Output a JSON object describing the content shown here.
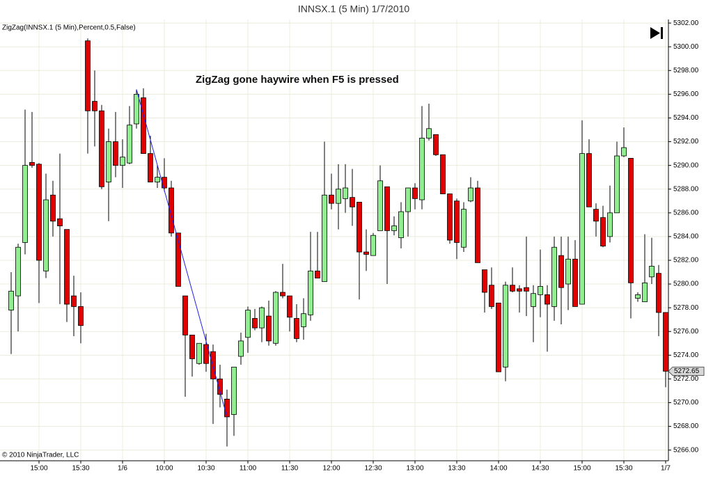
{
  "chart_data": {
    "type": "candlestick",
    "title": "INNSX.1 (5 Min)  1/7/2010",
    "subtitle": "ZigZag(INNSX.1 (5 Min),Percent,0.5,False)",
    "annotation": "ZigZag gone haywire when F5 is pressed",
    "copyright": "© 2010 NinjaTrader, LLC",
    "categories": [
      null,
      null,
      null,
      null,
      "15:00",
      null,
      null,
      null,
      null,
      null,
      "15:30",
      null,
      null,
      null,
      null,
      null,
      "1/6",
      null,
      null,
      null,
      null,
      null,
      "10:00",
      null,
      null,
      null,
      null,
      null,
      "10:30",
      null,
      null,
      null,
      null,
      null,
      "11:00",
      null,
      null,
      null,
      null,
      null,
      "11:30",
      null,
      null,
      null,
      null,
      null,
      "12:00",
      null,
      null,
      null,
      null,
      null,
      "12:30",
      null,
      null,
      null,
      null,
      null,
      "13:00",
      null,
      null,
      null,
      null,
      null,
      "13:30",
      null,
      null,
      null,
      null,
      null,
      "14:00",
      null,
      null,
      null,
      null,
      null,
      "14:30",
      null,
      null,
      null,
      null,
      null,
      "15:00",
      null,
      null,
      null,
      null,
      null,
      "15:30",
      null,
      null,
      null,
      null,
      null,
      "1/7"
    ],
    "open": [
      5277.8,
      5279,
      5283.5,
      5290.25,
      5290.1,
      5281.1,
      5287.5,
      5285.5,
      5284.6,
      5279,
      5278.1,
      5300.5,
      5295.4,
      5294.6,
      5288.6,
      5292,
      5290,
      5290.2,
      5293.5,
      5295.7,
      5291,
      5288.6,
      5289,
      5288.1,
      5284.3,
      5279,
      5275.7,
      5273.3,
      5274.9,
      5274.3,
      5272,
      5270.3,
      5269,
      5273.9,
      5275.5,
      5277.1,
      5276.3,
      5277.3,
      5275,
      5279.3,
      5279,
      5277.1,
      5276.4,
      5277.4,
      5281.1,
      5280.2,
      5287.5,
      5286.8,
      5287.2,
      5287.3,
      5286.9,
      5282.7,
      5282.4,
      5284.5,
      5288.2,
      5284.5,
      5283.9,
      5286.1,
      5288.1,
      5287.1,
      5292.3,
      5292.6,
      5290.9,
      5287.6,
      5287,
      5283.1,
      5287,
      5288.1,
      5281.2,
      5279.9,
      5278.4,
      5273,
      5279.9,
      5279.6,
      5279.7,
      5278.1,
      5279.1,
      5279.1,
      5278.1,
      5282.4,
      5280,
      5282.1,
      5278.3,
      5291,
      5286.3,
      5285.6,
      5284,
      5286,
      5290.8,
      5290.6,
      5278.8,
      5278.5,
      5280.6,
      5280.9,
      5277.6
    ],
    "high": [
      5281,
      5283.4,
      5294.7,
      5294.5,
      5290.2,
      5289.3,
      5288.7,
      5291,
      5284.6,
      5280.7,
      5279.3,
      5300.7,
      5298,
      5295.1,
      5293.1,
      5294.5,
      5292.2,
      5295,
      5296.4,
      5296.5,
      5292.5,
      5290,
      5290.6,
      5288.7,
      5284.3,
      5279,
      5275.7,
      5275,
      5275.8,
      5274.9,
      5273.2,
      5271.1,
      5273,
      5275.9,
      5278.1,
      5277.9,
      5278.1,
      5278.6,
      5279.4,
      5281.7,
      5279,
      5278.3,
      5278.8,
      5284.4,
      5284.4,
      5292,
      5289.3,
      5290.1,
      5290.1,
      5289.7,
      5286.9,
      5284.6,
      5284.3,
      5290,
      5288.2,
      5285.7,
      5286.9,
      5288.1,
      5288.5,
      5295,
      5295.2,
      5292.6,
      5290.9,
      5287.6,
      5287.2,
      5286.9,
      5289,
      5288.7,
      5281.2,
      5281.4,
      5278.4,
      5280.2,
      5281.4,
      5279.9,
      5284,
      5279.9,
      5282.9,
      5279.9,
      5284,
      5284,
      5284,
      5283.7,
      5293.8,
      5292.2,
      5286.8,
      5286.6,
      5288.3,
      5292,
      5293.2,
      5290.6,
      5279.3,
      5284.2,
      5283.9,
      5281.6,
      5277.6
    ],
    "low": [
      5274.1,
      5276,
      5282.5,
      5289.8,
      5278.4,
      5280.5,
      5284,
      5278.3,
      5276.8,
      5275.6,
      5275,
      5291,
      5291.6,
      5288,
      5285.3,
      5289,
      5288.1,
      5290.1,
      5293.1,
      5291,
      5288.6,
      5288.1,
      5287.8,
      5284,
      5279.8,
      5270.5,
      5272.2,
      5273.2,
      5272.6,
      5268.2,
      5269.6,
      5266.3,
      5267.2,
      5273.2,
      5274.2,
      5276.1,
      5275.1,
      5274.8,
      5274.8,
      5278.8,
      5276,
      5275.1,
      5275.3,
      5276.9,
      5280.5,
      5280.2,
      5286.3,
      5284.6,
      5286,
      5284.9,
      5278.7,
      5281.1,
      5282.4,
      5284.5,
      5280,
      5284.1,
      5283,
      5284,
      5286.3,
      5286.3,
      5292.1,
      5290.8,
      5287.6,
      5283.4,
      5282.1,
      5282.7,
      5286.9,
      5281.8,
      5277.6,
      5277.9,
      5272.6,
      5271.8,
      5279.3,
      5277.6,
      5277.3,
      5275.1,
      5277.2,
      5274.3,
      5276.9,
      5276.6,
      5277.8,
      5278.1,
      5278.3,
      5286.5,
      5284,
      5283.1,
      5283.5,
      5286,
      5290.7,
      5277.1,
      5278.5,
      5278.5,
      5280,
      5275.6,
      5271.3
    ],
    "close": [
      5279.4,
      5283.1,
      5290,
      5290,
      5282,
      5287.1,
      5285.3,
      5284.9,
      5278.3,
      5278.1,
      5276.5,
      5294.6,
      5294.6,
      5288.2,
      5292,
      5290,
      5290.7,
      5293.4,
      5296,
      5291,
      5288.6,
      5289,
      5288.1,
      5284.3,
      5279.8,
      5275.7,
      5273.7,
      5275,
      5273.3,
      5272,
      5270.7,
      5268.8,
      5273,
      5275.2,
      5277.8,
      5276.3,
      5278,
      5275.2,
      5279.3,
      5279,
      5277.2,
      5275.4,
      5277.5,
      5281.1,
      5280.5,
      5287.5,
      5286.8,
      5288,
      5288.1,
      5286.5,
      5282.7,
      5282.5,
      5284.1,
      5288.7,
      5284.5,
      5284.9,
      5286.1,
      5288.1,
      5287.2,
      5292.3,
      5293.1,
      5290.9,
      5287.6,
      5283.7,
      5283.5,
      5286.3,
      5288.1,
      5281.8,
      5279.3,
      5278.1,
      5272.6,
      5279.9,
      5279.4,
      5279.4,
      5279.4,
      5279.2,
      5279.8,
      5278.3,
      5283.1,
      5279.7,
      5282.1,
      5278.1,
      5291,
      5286.5,
      5285.3,
      5283.2,
      5286,
      5290.8,
      5291.5,
      5280.1,
      5279.1,
      5280.1,
      5281.5,
      5277.6,
      5272.65
    ],
    "up_color": "#90ee90",
    "down_color": "#e00000",
    "zigzag": {
      "color": "#2020e0",
      "points": [
        {
          "index": 18,
          "value": 5296.4
        },
        {
          "index": 31,
          "value": 5268.8
        }
      ]
    },
    "ylim": [
      5265.1,
      5302.3
    ],
    "yticks": [
      {
        "value": 5266,
        "label": "5266.00"
      },
      {
        "value": 5268,
        "label": "5268.00"
      },
      {
        "value": 5270,
        "label": "5270.00"
      },
      {
        "value": 5272,
        "label": "5272.00"
      },
      {
        "value": 5274,
        "label": "5274.00"
      },
      {
        "value": 5276,
        "label": "5276.00"
      },
      {
        "value": 5278,
        "label": "5278.00"
      },
      {
        "value": 5280,
        "label": "5280.00"
      },
      {
        "value": 5282,
        "label": "5282.00"
      },
      {
        "value": 5284,
        "label": "5284.00"
      },
      {
        "value": 5286,
        "label": "5286.00"
      },
      {
        "value": 5288,
        "label": "5288.00"
      },
      {
        "value": 5290,
        "label": "5290.00"
      },
      {
        "value": 5292,
        "label": "5292.00"
      },
      {
        "value": 5294,
        "label": "5294.00"
      },
      {
        "value": 5296,
        "label": "5296.00"
      },
      {
        "value": 5298,
        "label": "5298.00"
      },
      {
        "value": 5300,
        "label": "5300.00"
      },
      {
        "value": 5302,
        "label": "5302.00"
      }
    ],
    "grid": true
  }
}
